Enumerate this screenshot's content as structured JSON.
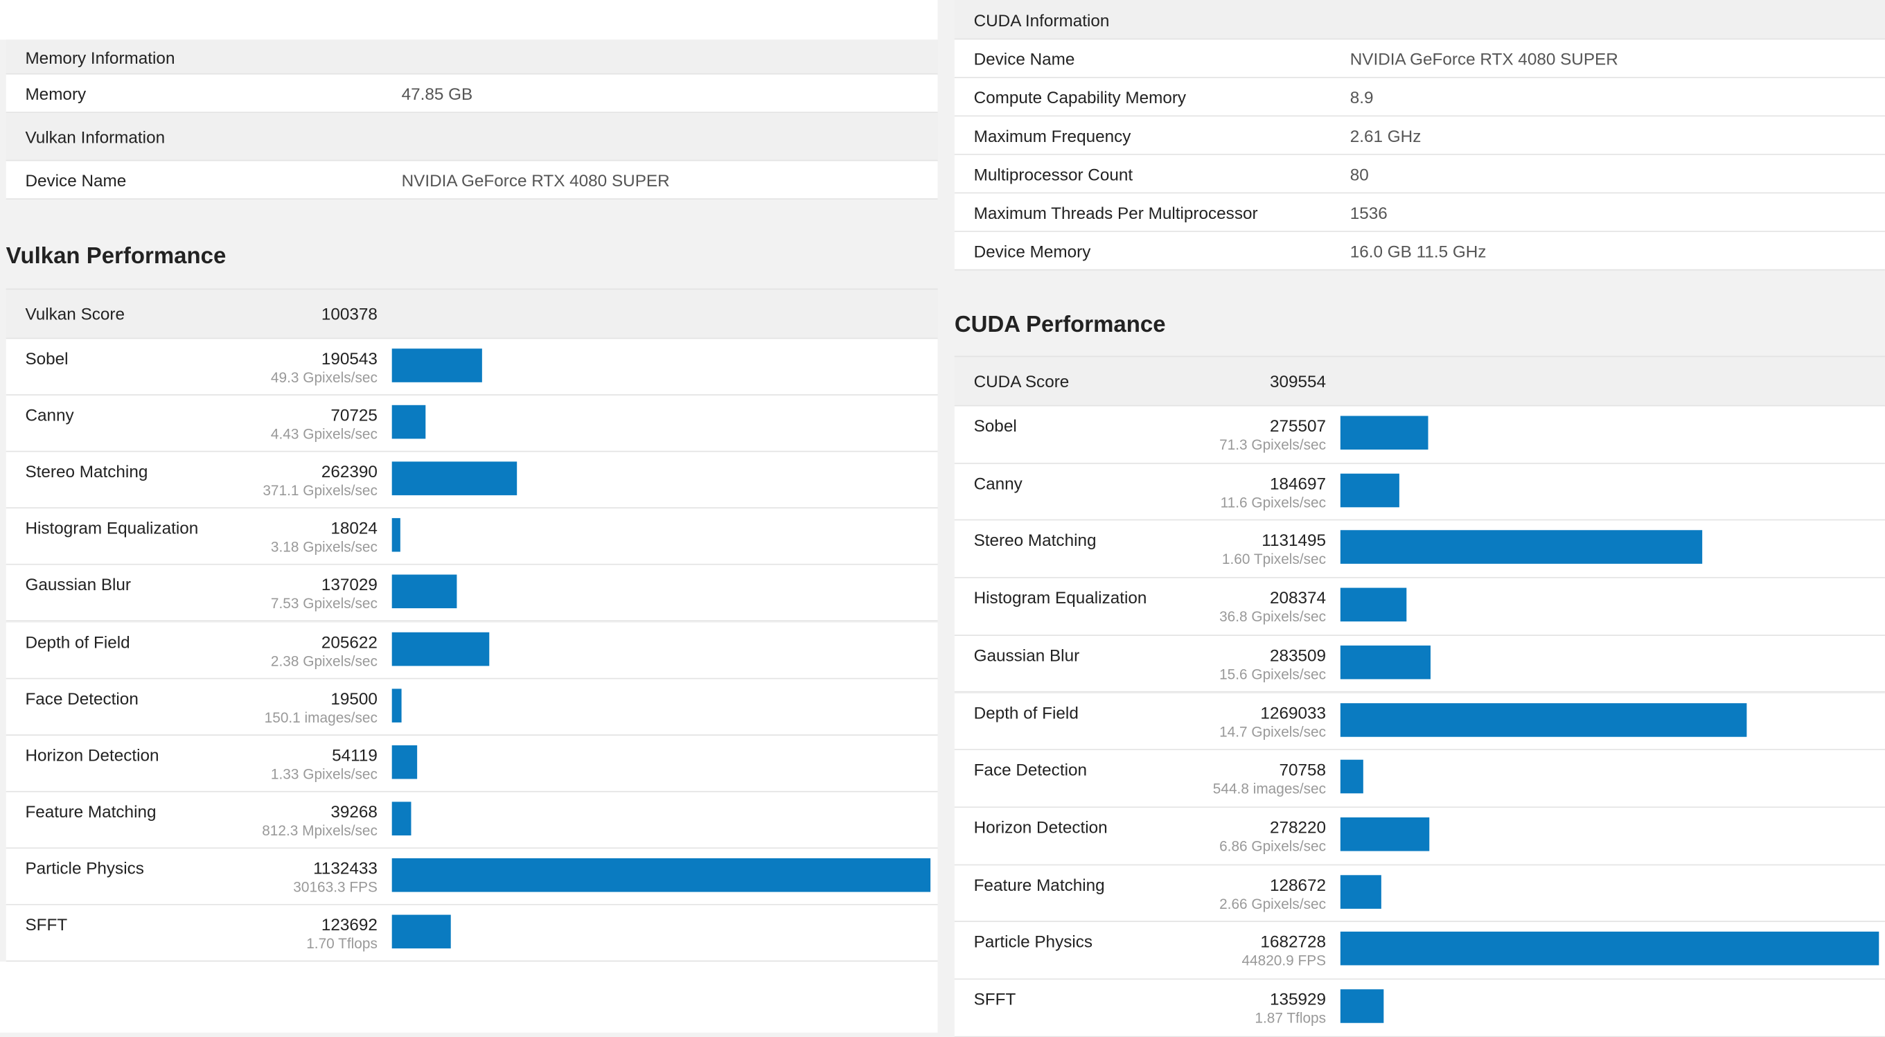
{
  "left": {
    "info_sections": [
      {
        "title": "Memory Information",
        "rows": [
          {
            "label": "Memory",
            "value": "47.85 GB"
          }
        ]
      },
      {
        "title": "Vulkan Information",
        "rows": [
          {
            "label": "Device Name",
            "value": "NVIDIA GeForce RTX 4080 SUPER"
          }
        ]
      }
    ],
    "performance": {
      "title": "Vulkan Performance",
      "score_label": "Vulkan Score",
      "score": 100378,
      "tests": [
        {
          "name": "Sobel",
          "score": 190543,
          "rate": "49.3 Gpixels/sec"
        },
        {
          "name": "Canny",
          "score": 70725,
          "rate": "4.43 Gpixels/sec"
        },
        {
          "name": "Stereo Matching",
          "score": 262390,
          "rate": "371.1 Gpixels/sec"
        },
        {
          "name": "Histogram Equalization",
          "score": 18024,
          "rate": "3.18 Gpixels/sec"
        },
        {
          "name": "Gaussian Blur",
          "score": 137029,
          "rate": "7.53 Gpixels/sec"
        },
        {
          "name": "Depth of Field",
          "score": 205622,
          "rate": "2.38 Gpixels/sec"
        },
        {
          "name": "Face Detection",
          "score": 19500,
          "rate": "150.1 images/sec"
        },
        {
          "name": "Horizon Detection",
          "score": 54119,
          "rate": "1.33 Gpixels/sec"
        },
        {
          "name": "Feature Matching",
          "score": 39268,
          "rate": "812.3 Mpixels/sec"
        },
        {
          "name": "Particle Physics",
          "score": 1132433,
          "rate": "30163.3 FPS"
        },
        {
          "name": "SFFT",
          "score": 123692,
          "rate": "1.70 Tflops"
        }
      ]
    }
  },
  "right": {
    "info_sections": [
      {
        "title": "CUDA Information",
        "rows": [
          {
            "label": "Device Name",
            "value": "NVIDIA GeForce RTX 4080 SUPER"
          },
          {
            "label": "Compute Capability Memory",
            "value": "8.9"
          },
          {
            "label": "Maximum Frequency",
            "value": "2.61 GHz"
          },
          {
            "label": "Multiprocessor Count",
            "value": "80"
          },
          {
            "label": "Maximum Threads Per Multiprocessor",
            "value": "1536"
          },
          {
            "label": "Device Memory",
            "value": "16.0 GB 11.5 GHz"
          }
        ]
      }
    ],
    "performance": {
      "title": "CUDA Performance",
      "score_label": "CUDA Score",
      "score": 309554,
      "tests": [
        {
          "name": "Sobel",
          "score": 275507,
          "rate": "71.3 Gpixels/sec"
        },
        {
          "name": "Canny",
          "score": 184697,
          "rate": "11.6 Gpixels/sec"
        },
        {
          "name": "Stereo Matching",
          "score": 1131495,
          "rate": "1.60 Tpixels/sec"
        },
        {
          "name": "Histogram Equalization",
          "score": 208374,
          "rate": "36.8 Gpixels/sec"
        },
        {
          "name": "Gaussian Blur",
          "score": 283509,
          "rate": "15.6 Gpixels/sec"
        },
        {
          "name": "Depth of Field",
          "score": 1269033,
          "rate": "14.7 Gpixels/sec"
        },
        {
          "name": "Face Detection",
          "score": 70758,
          "rate": "544.8 images/sec"
        },
        {
          "name": "Horizon Detection",
          "score": 278220,
          "rate": "6.86 Gpixels/sec"
        },
        {
          "name": "Feature Matching",
          "score": 128672,
          "rate": "2.66 Gpixels/sec"
        },
        {
          "name": "Particle Physics",
          "score": 1682728,
          "rate": "44820.9 FPS"
        },
        {
          "name": "SFFT",
          "score": 135929,
          "rate": "1.87 Tflops"
        }
      ]
    }
  }
}
